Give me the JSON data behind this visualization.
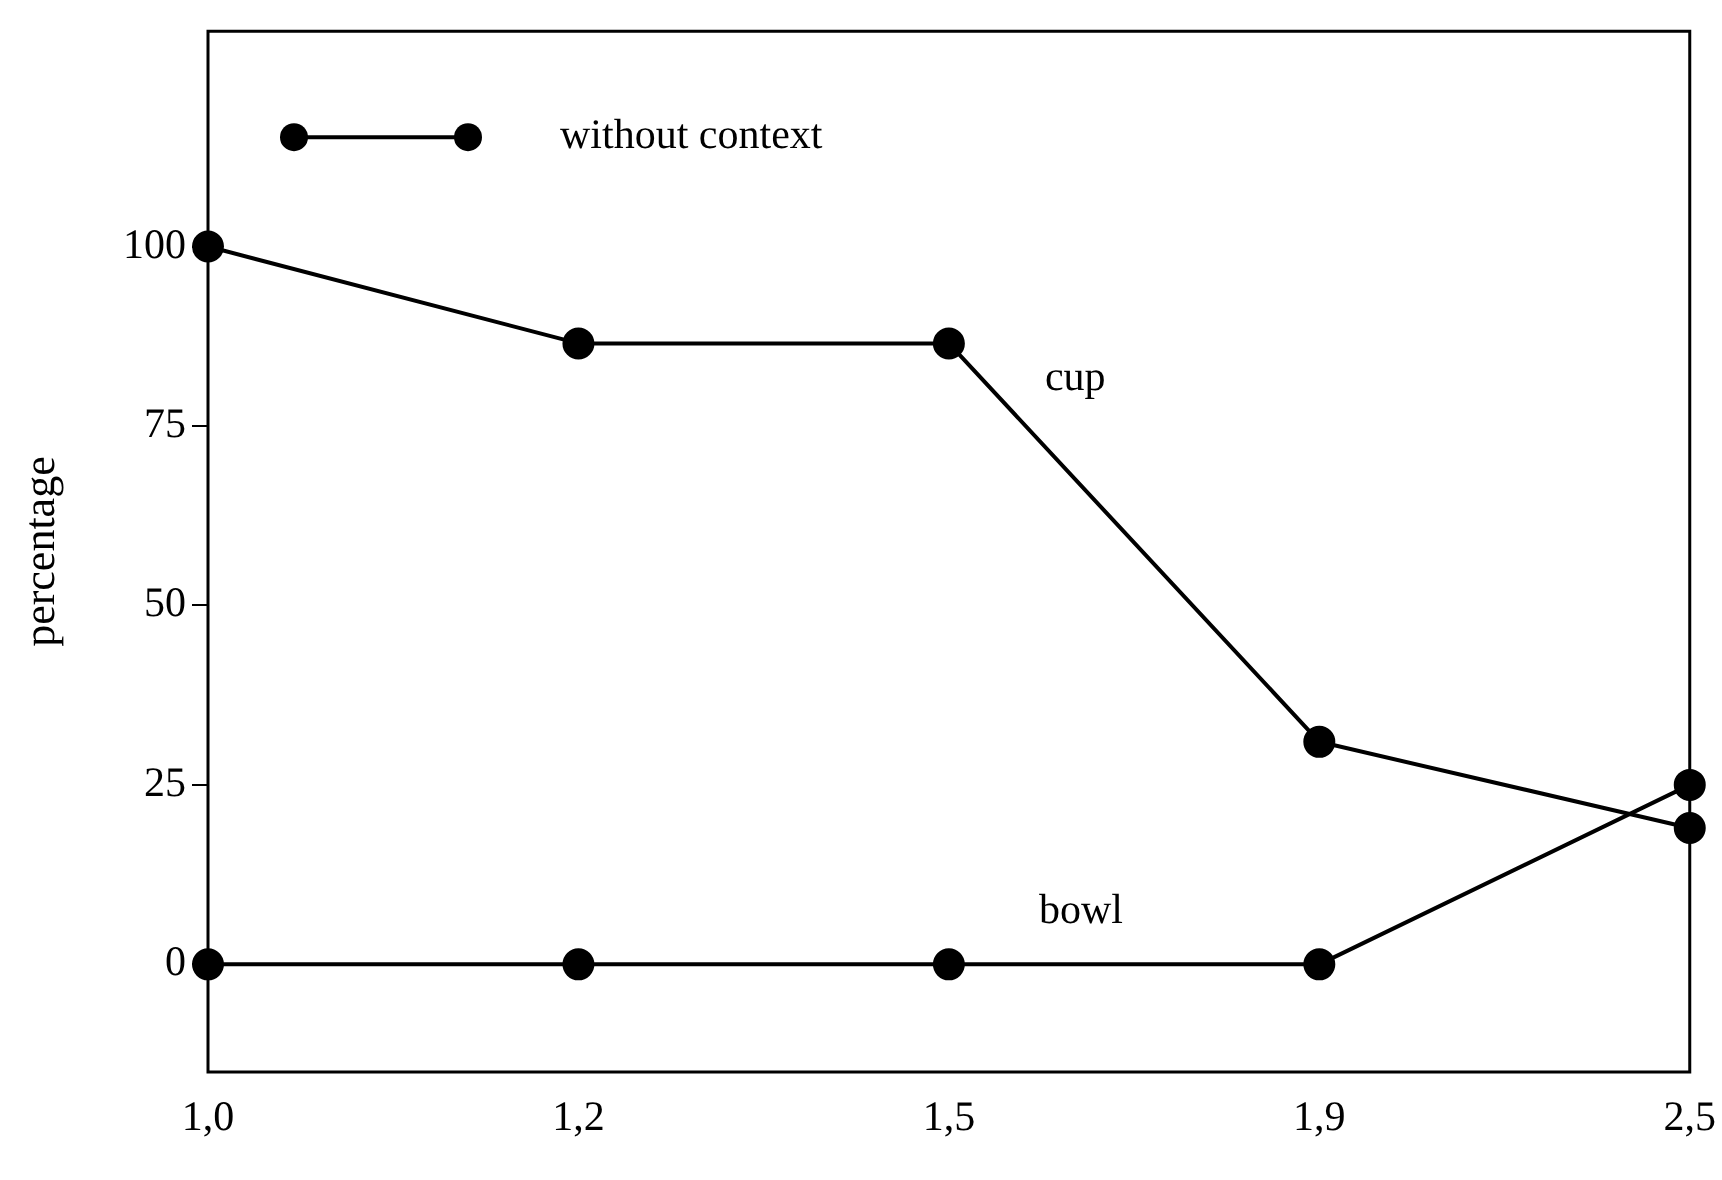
{
  "chart_data": {
    "type": "line",
    "ylabel": "percentage",
    "legend_title": "without context",
    "marker": "circle",
    "line_style": "solid",
    "grid": false,
    "categories": [
      "1,0",
      "1,2",
      "1,5",
      "1,9",
      "2,5"
    ],
    "ylim": [
      -15,
      130
    ],
    "yticks": [
      0,
      25,
      50,
      75,
      100
    ],
    "series": [
      {
        "color": "#000000",
        "values": [
          100,
          86.5,
          86.5,
          31,
          19
        ]
      },
      {
        "color": "#000000",
        "values": [
          0,
          0,
          0,
          0,
          25
        ]
      }
    ],
    "annotations": [
      {
        "text": "cup",
        "x": "1,5",
        "y": 86.5
      },
      {
        "text": "bowl",
        "x": "1,5",
        "y": 0
      }
    ]
  }
}
